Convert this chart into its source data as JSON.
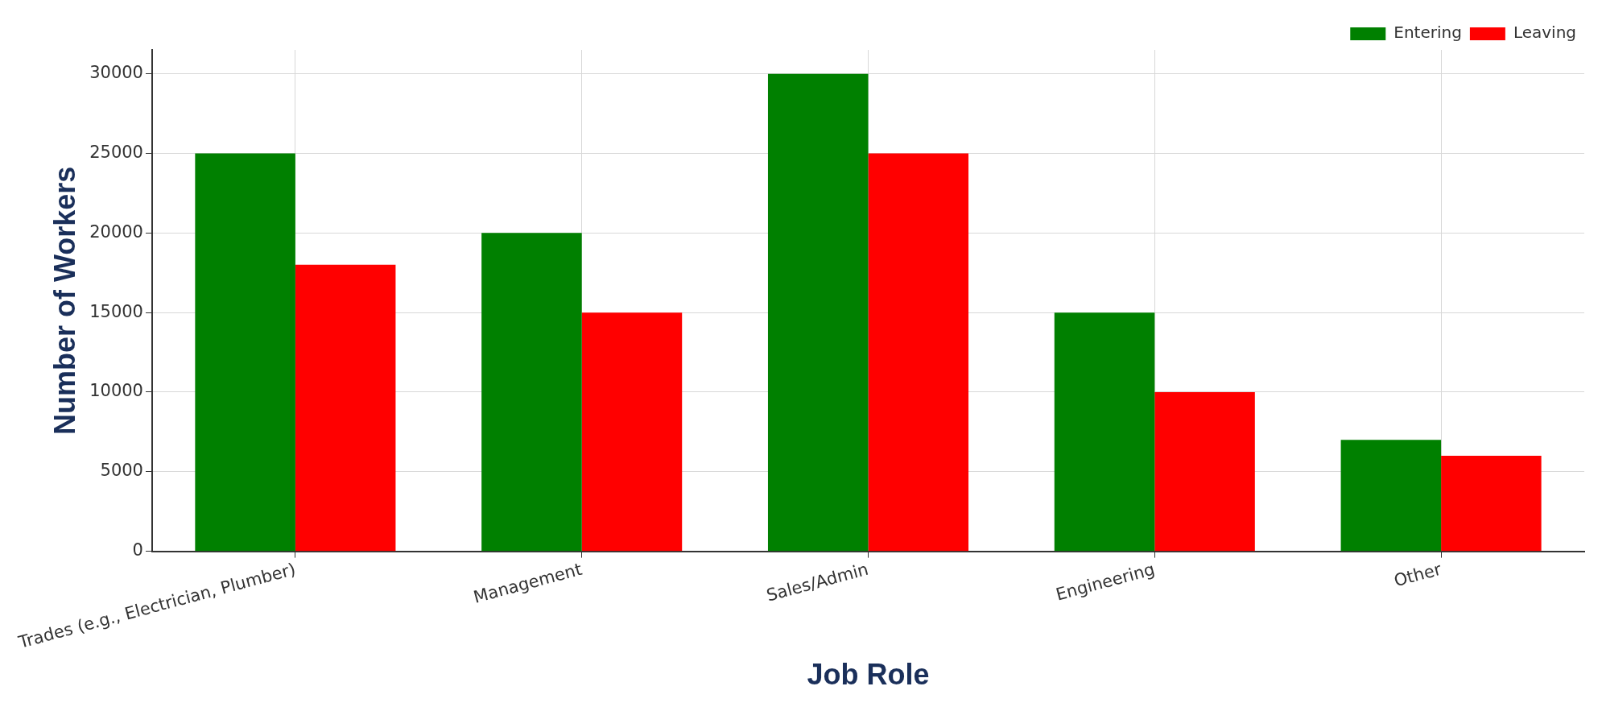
{
  "chart_data": {
    "type": "bar",
    "xlabel": "Job Role",
    "ylabel": "Number of Workers",
    "categories": [
      "Trades (e.g., Electrician, Plumber)",
      "Management",
      "Sales/Admin",
      "Engineering",
      "Other"
    ],
    "series": [
      {
        "name": "Entering",
        "color": "#008000",
        "values": [
          25000,
          20000,
          30000,
          15000,
          7000
        ]
      },
      {
        "name": "Leaving",
        "color": "#ff0000",
        "values": [
          18000,
          15000,
          25000,
          10000,
          6000
        ]
      }
    ],
    "ylim": [
      0,
      31500
    ],
    "yticks": [
      0,
      5000,
      10000,
      15000,
      20000,
      25000,
      30000
    ],
    "grid": true,
    "legend": "top right"
  }
}
